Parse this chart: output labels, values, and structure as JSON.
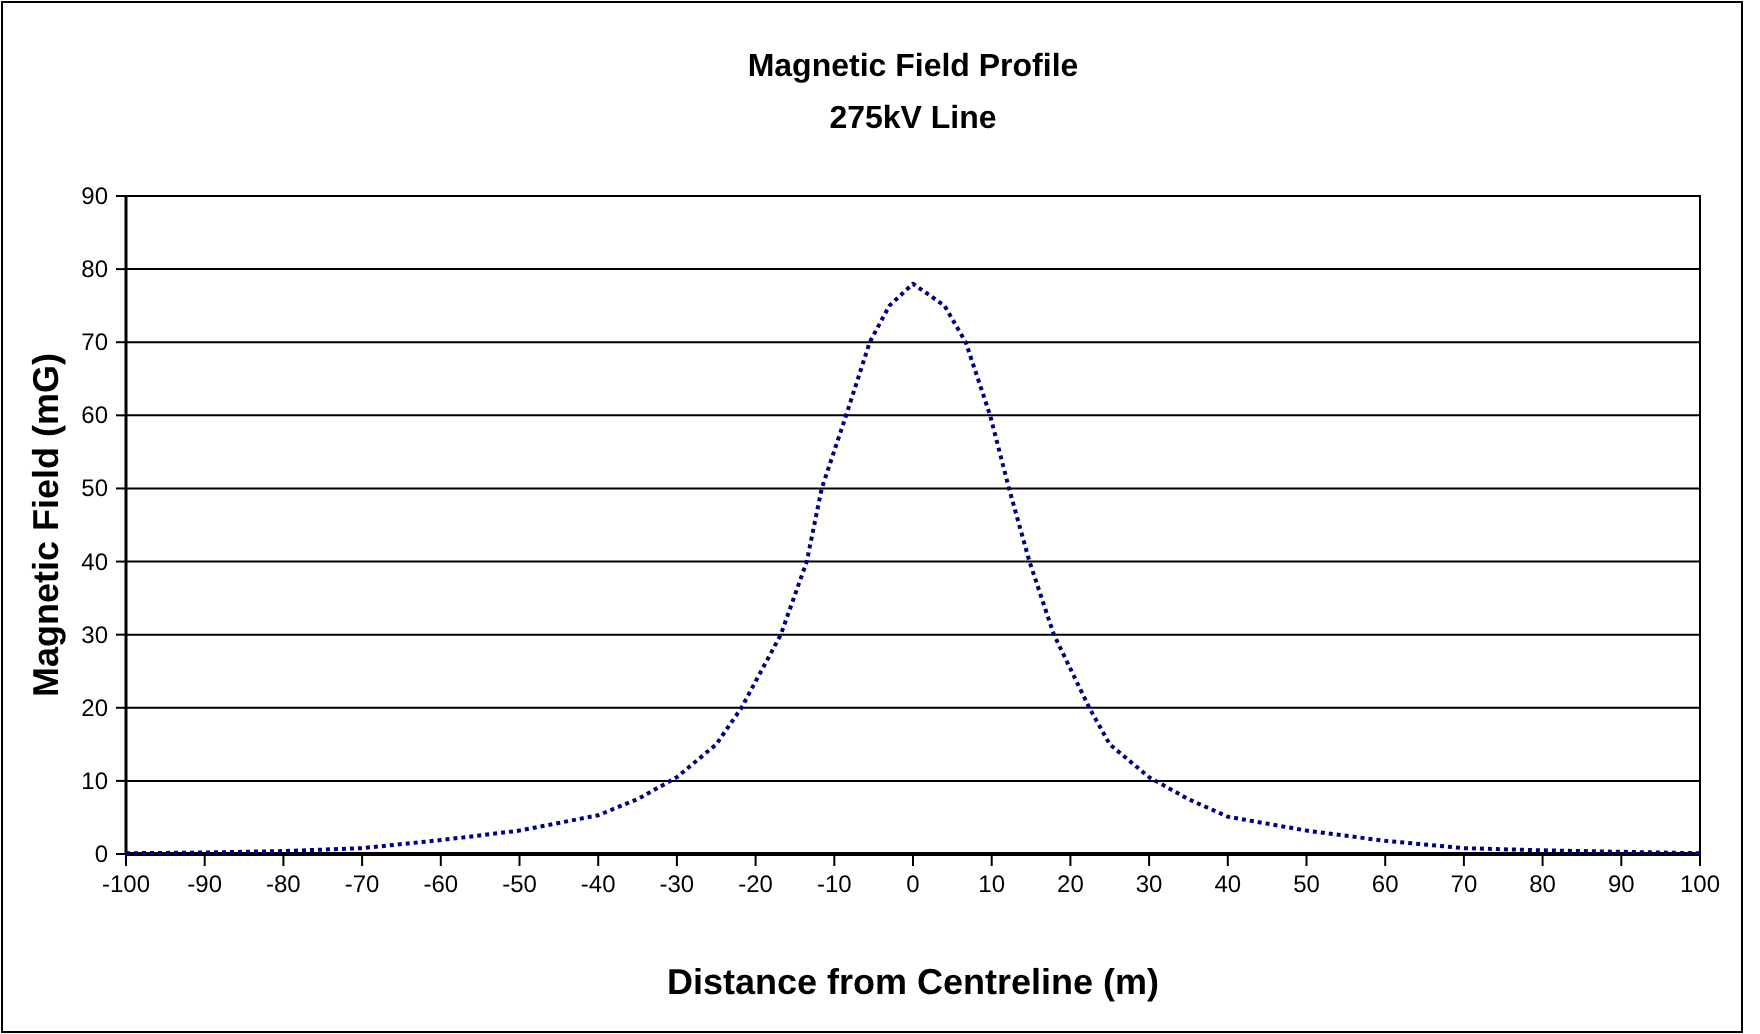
{
  "chart_data": {
    "type": "line",
    "title": "Magnetic Field Profile",
    "subtitle": "275kV Line",
    "xlabel": "Distance from Centreline (m)",
    "ylabel": "Magnetic Field (mG)",
    "xlim": [
      -100,
      100
    ],
    "xticks": [
      -100,
      -90,
      -80,
      -70,
      -60,
      -50,
      -40,
      -30,
      -20,
      -10,
      0,
      10,
      20,
      30,
      40,
      50,
      60,
      70,
      80,
      90,
      100
    ],
    "ylim": [
      0,
      90
    ],
    "yticks": [
      0,
      10,
      20,
      30,
      40,
      50,
      60,
      70,
      80,
      90
    ],
    "grid": "y",
    "line_style": "dotted",
    "series": [
      {
        "color": "#000080",
        "x": [
          -100,
          -90,
          -80,
          -70,
          -60,
          -50,
          -40,
          -35,
          -30,
          -25,
          -21.8,
          -16.8,
          -13.5,
          -11.6,
          -8.5,
          -5.5,
          -3,
          0,
          4,
          6.7,
          9.8,
          12.2,
          14.8,
          17.9,
          22.4,
          25,
          30,
          35,
          40,
          50,
          60,
          70,
          80,
          90,
          100
        ],
        "values": [
          0.1,
          0.2,
          0.4,
          0.8,
          1.9,
          3.2,
          5.3,
          7.5,
          10.5,
          15,
          20,
          30,
          40,
          50,
          60,
          70,
          75,
          78,
          75,
          70,
          60,
          50,
          40,
          30,
          20,
          15,
          10.5,
          7.5,
          5.1,
          3.2,
          1.8,
          0.8,
          0.5,
          0.3,
          0.1
        ]
      }
    ]
  }
}
